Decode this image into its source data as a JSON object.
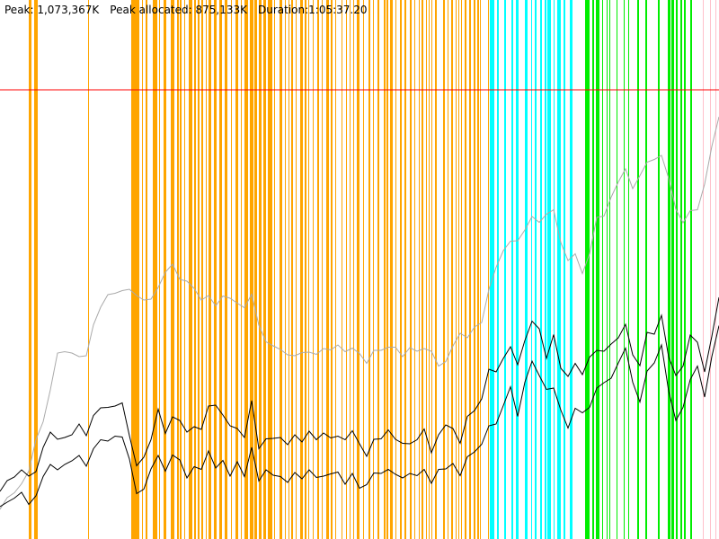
{
  "stats": {
    "peak": "Peak: 1,073,367K",
    "peak_allocated": "Peak allocated: 875,133K",
    "duration": "Duration:1:05:37.20"
  },
  "chart_data": {
    "type": "line",
    "title": "",
    "xlabel": "",
    "ylabel": "",
    "xlim": [
      0,
      800
    ],
    "ylim": [
      0,
      1200000
    ],
    "grid": false,
    "legend": "none",
    "threshold": {
      "value": 1000000,
      "color": "#ff0000"
    },
    "phases": [
      {
        "color": "#ffa500",
        "bands": [
          [
            32,
            35
          ],
          [
            38,
            42
          ],
          [
            98,
            99
          ],
          [
            146,
            155
          ],
          [
            158,
            159
          ],
          [
            162,
            164
          ],
          [
            170,
            175
          ],
          [
            177,
            178
          ],
          [
            182,
            185
          ],
          [
            190,
            194
          ],
          [
            197,
            199
          ],
          [
            200,
            202
          ],
          [
            205,
            206
          ],
          [
            210,
            214
          ],
          [
            216,
            218
          ],
          [
            220,
            222
          ],
          [
            224,
            226
          ],
          [
            229,
            230
          ],
          [
            232,
            235
          ],
          [
            238,
            241
          ],
          [
            244,
            247
          ],
          [
            250,
            253
          ],
          [
            257,
            258
          ],
          [
            262,
            265
          ],
          [
            268,
            269
          ],
          [
            272,
            276
          ],
          [
            278,
            282
          ],
          [
            283,
            286
          ],
          [
            288,
            291
          ],
          [
            293,
            296
          ],
          [
            298,
            303
          ],
          [
            305,
            306
          ],
          [
            311,
            314
          ],
          [
            317,
            318
          ],
          [
            321,
            322
          ],
          [
            324,
            326
          ],
          [
            329,
            330
          ],
          [
            334,
            337
          ],
          [
            339,
            341
          ],
          [
            343,
            344
          ],
          [
            348,
            349
          ],
          [
            353,
            355
          ],
          [
            358,
            359
          ],
          [
            363,
            366
          ],
          [
            368,
            370
          ],
          [
            373,
            374
          ],
          [
            380,
            381
          ],
          [
            385,
            386
          ],
          [
            389,
            390
          ],
          [
            393,
            394
          ],
          [
            397,
            400
          ],
          [
            404,
            405
          ],
          [
            410,
            412
          ],
          [
            415,
            416
          ],
          [
            420,
            422
          ],
          [
            427,
            429
          ],
          [
            430,
            432
          ],
          [
            434,
            437
          ],
          [
            440,
            441
          ],
          [
            445,
            447
          ],
          [
            450,
            452
          ],
          [
            456,
            458
          ],
          [
            461,
            462
          ],
          [
            466,
            467
          ],
          [
            469,
            471
          ],
          [
            474,
            475
          ],
          [
            477,
            478
          ],
          [
            480,
            481
          ],
          [
            484,
            486
          ],
          [
            493,
            495
          ],
          [
            498,
            499
          ],
          [
            502,
            504
          ],
          [
            507,
            508
          ],
          [
            510,
            511
          ],
          [
            513,
            514
          ],
          [
            517,
            519
          ],
          [
            522,
            524
          ],
          [
            527,
            529
          ],
          [
            531,
            533
          ],
          [
            534,
            535
          ],
          [
            543,
            544
          ]
        ]
      },
      {
        "color": "#00ffff",
        "bands": [
          [
            545,
            550
          ],
          [
            553,
            555
          ],
          [
            561,
            563
          ],
          [
            569,
            571
          ],
          [
            574,
            577
          ],
          [
            584,
            587
          ],
          [
            591,
            592
          ],
          [
            595,
            597
          ],
          [
            601,
            603
          ],
          [
            606,
            608
          ],
          [
            609,
            613
          ],
          [
            616,
            617
          ],
          [
            620,
            624
          ],
          [
            627,
            629
          ],
          [
            634,
            637
          ]
        ]
      },
      {
        "color": "#00ee00",
        "bands": [
          [
            651,
            656
          ],
          [
            659,
            661
          ],
          [
            663,
            667
          ],
          [
            670,
            671
          ],
          [
            675,
            676
          ],
          [
            678,
            679
          ],
          [
            686,
            687
          ],
          [
            694,
            695
          ],
          [
            699,
            700
          ],
          [
            709,
            711
          ],
          [
            718,
            720
          ],
          [
            732,
            734
          ],
          [
            743,
            746
          ],
          [
            747,
            750
          ],
          [
            752,
            754
          ],
          [
            757,
            759
          ],
          [
            761,
            763
          ],
          [
            768,
            770
          ]
        ]
      },
      {
        "color": "#ffc0cb",
        "bands": [
          [
            782,
            783
          ],
          [
            790,
            791
          ],
          [
            796,
            797
          ]
        ]
      }
    ],
    "series": [
      {
        "color": "#aaaaaa",
        "x": [
          0,
          8,
          16,
          24,
          32,
          40,
          48,
          56,
          64,
          72,
          80,
          88,
          96,
          104,
          112,
          120,
          128,
          136,
          144,
          152,
          160,
          168,
          176,
          184,
          192,
          200,
          208,
          216,
          224,
          232,
          240,
          248,
          256,
          264,
          272,
          280,
          288,
          296,
          304,
          312,
          320,
          328,
          336,
          344,
          352,
          360,
          368,
          376,
          384,
          392,
          400,
          408,
          416,
          424,
          432,
          440,
          448,
          456,
          464,
          472,
          480,
          488,
          496,
          504,
          512,
          520,
          528,
          536,
          544,
          552,
          560,
          568,
          576,
          584,
          592,
          600,
          608,
          616,
          624,
          632,
          640,
          648,
          656,
          664,
          672,
          680,
          688,
          696,
          704,
          712,
          720,
          728,
          736,
          744,
          752,
          760,
          768,
          776,
          784,
          792,
          800
        ],
        "y": [
          66000,
          92000,
          103000,
          123000,
          151000,
          221000,
          261000,
          332000,
          414000,
          417000,
          414000,
          406000,
          408000,
          477000,
          516000,
          544000,
          547000,
          553000,
          556000,
          542000,
          532000,
          534000,
          560000,
          594000,
          612000,
          578000,
          574000,
          558000,
          532000,
          542000,
          519000,
          541000,
          536000,
          525000,
          515000,
          545000,
          476000,
          439000,
          430000,
          422000,
          410000,
          408000,
          415000,
          416000,
          411000,
          424000,
          421000,
          432000,
          417000,
          425000,
          413000,
          391000,
          420000,
          420000,
          427000,
          427000,
          406000,
          426000,
          418000,
          424000,
          418000,
          385000,
          395000,
          430000,
          458000,
          448000,
          472000,
          482000,
          556000,
          605000,
          642000,
          663000,
          664000,
          688000,
          718000,
          705000,
          723000,
          733000,
          660000,
          620000,
          635000,
          591000,
          635000,
          716000,
          719000,
          761000,
          795000,
          824000,
          780000,
          809000,
          839000,
          845000,
          854000,
          803000,
          734000,
          704000,
          731000,
          733000,
          790000,
          874000,
          940000
        ]
      },
      {
        "color": "#000000",
        "x": [
          0,
          8,
          16,
          24,
          32,
          40,
          48,
          56,
          64,
          72,
          80,
          88,
          96,
          104,
          112,
          120,
          128,
          136,
          144,
          152,
          160,
          168,
          176,
          184,
          192,
          200,
          208,
          216,
          224,
          232,
          240,
          248,
          256,
          264,
          272,
          280,
          288,
          296,
          304,
          312,
          320,
          328,
          336,
          344,
          352,
          360,
          368,
          376,
          384,
          392,
          400,
          408,
          416,
          424,
          432,
          440,
          448,
          456,
          464,
          472,
          480,
          488,
          496,
          504,
          512,
          520,
          528,
          536,
          544,
          552,
          560,
          568,
          576,
          584,
          592,
          600,
          608,
          616,
          624,
          632,
          640,
          648,
          656,
          664,
          672,
          680,
          688,
          696,
          704,
          712,
          720,
          728,
          736,
          744,
          752,
          760,
          768,
          776,
          784,
          792,
          800
        ],
        "y": [
          106000,
          130000,
          138000,
          154000,
          140000,
          150000,
          204000,
          238000,
          222000,
          226000,
          232000,
          256000,
          230000,
          275000,
          292000,
          293000,
          296000,
          303000,
          230000,
          163000,
          182000,
          221000,
          289000,
          235000,
          272000,
          264000,
          238000,
          250000,
          244000,
          296000,
          298000,
          276000,
          252000,
          246000,
          226000,
          308000,
          201000,
          223000,
          224000,
          226000,
          210000,
          232000,
          216000,
          240000,
          221000,
          236000,
          225000,
          229000,
          221000,
          241000,
          212000,
          184000,
          222000,
          223000,
          243000,
          222000,
          213000,
          212000,
          221000,
          245000,
          192000,
          232000,
          254000,
          246000,
          213000,
          273000,
          286000,
          312000,
          378000,
          372000,
          402000,
          428000,
          388000,
          442000,
          485000,
          468000,
          402000,
          455000,
          380000,
          362000,
          391000,
          366000,
          405000,
          420000,
          418000,
          434000,
          448000,
          478000,
          410000,
          386000,
          460000,
          456000,
          498000,
          405000,
          364000,
          385000,
          454000,
          438000,
          372000,
          451000,
          538000
        ]
      },
      {
        "color": "#000000",
        "x": [
          0,
          8,
          16,
          24,
          32,
          40,
          48,
          56,
          64,
          72,
          80,
          88,
          96,
          104,
          112,
          120,
          128,
          136,
          144,
          152,
          160,
          168,
          176,
          184,
          192,
          200,
          208,
          216,
          224,
          232,
          240,
          248,
          256,
          264,
          272,
          280,
          288,
          296,
          304,
          312,
          320,
          328,
          336,
          344,
          352,
          360,
          368,
          376,
          384,
          392,
          400,
          408,
          416,
          424,
          432,
          440,
          448,
          456,
          464,
          472,
          480,
          488,
          496,
          504,
          512,
          520,
          528,
          536,
          544,
          552,
          560,
          568,
          576,
          584,
          592,
          600,
          608,
          616,
          624,
          632,
          640,
          648,
          656,
          664,
          672,
          680,
          688,
          696,
          704,
          712,
          720,
          728,
          736,
          744,
          752,
          760,
          768,
          776,
          784,
          792,
          800
        ],
        "y": [
          72000,
          82000,
          91000,
          104000,
          77000,
          96000,
          139000,
          166000,
          154000,
          166000,
          174000,
          186000,
          162000,
          201000,
          221000,
          218000,
          229000,
          227000,
          178000,
          101000,
          111000,
          156000,
          186000,
          151000,
          187000,
          176000,
          136000,
          161000,
          155000,
          196000,
          158000,
          175000,
          140000,
          172000,
          139000,
          204000,
          129000,
          154000,
          142000,
          139000,
          126000,
          148000,
          134000,
          154000,
          137000,
          140000,
          145000,
          149000,
          122000,
          146000,
          113000,
          121000,
          147000,
          146000,
          155000,
          144000,
          136000,
          146000,
          141000,
          155000,
          124000,
          155000,
          156000,
          168000,
          141000,
          183000,
          194000,
          211000,
          252000,
          256000,
          297000,
          339000,
          273000,
          349000,
          396000,
          364000,
          333000,
          336000,
          287000,
          247000,
          291000,
          281000,
          293000,
          336000,
          348000,
          358000,
          392000,
          425000,
          349000,
          305000,
          374000,
          392000,
          432000,
          329000,
          264000,
          293000,
          355000,
          385000,
          316000,
          406000,
          475000
        ]
      }
    ]
  }
}
